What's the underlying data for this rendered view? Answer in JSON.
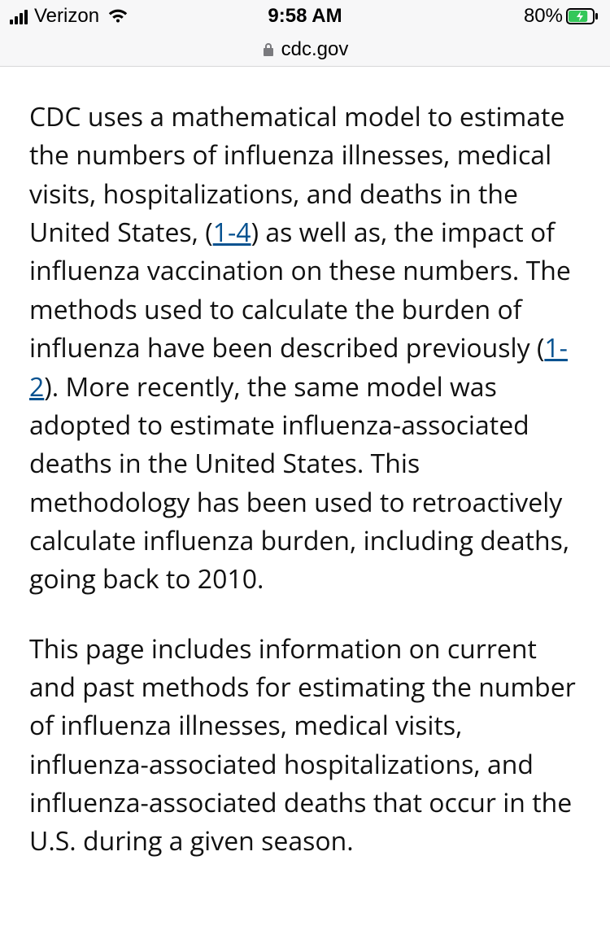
{
  "statusbar": {
    "carrier": "Verizon",
    "time": "9:58 AM",
    "battery_percent": "80%",
    "battery_fill_color": "#34c759",
    "battery_fill_ratio": 0.8
  },
  "addressbar": {
    "domain": "cdc.gov"
  },
  "article": {
    "p1_seg1": "CDC uses a mathematical model to estimate the numbers of influenza illnesses, medical visits, hospitalizations, and deaths in the United States, (",
    "p1_link1": "1-4",
    "p1_seg2": ") as well as, the impact of influenza vaccination on these numbers. The methods used to calculate the burden of influenza have been described previously (",
    "p1_link2": "1-2",
    "p1_seg3": "). More recently, the same model was adopted to estimate influenza-associated deaths in the United States. This methodology has been used to retroactively calculate influenza burden, including deaths, going back to 2010.",
    "p2": "This page includes information on current and past methods for estimating the number of influenza illnesses, medical visits, influenza-associated hospitalizations, and influenza-associated deaths that occur in the U.S. during a given season."
  },
  "colors": {
    "link": "#075290",
    "chrome_bg": "#f7f7f8",
    "chrome_border": "#d7d7d9",
    "text": "#111111"
  }
}
